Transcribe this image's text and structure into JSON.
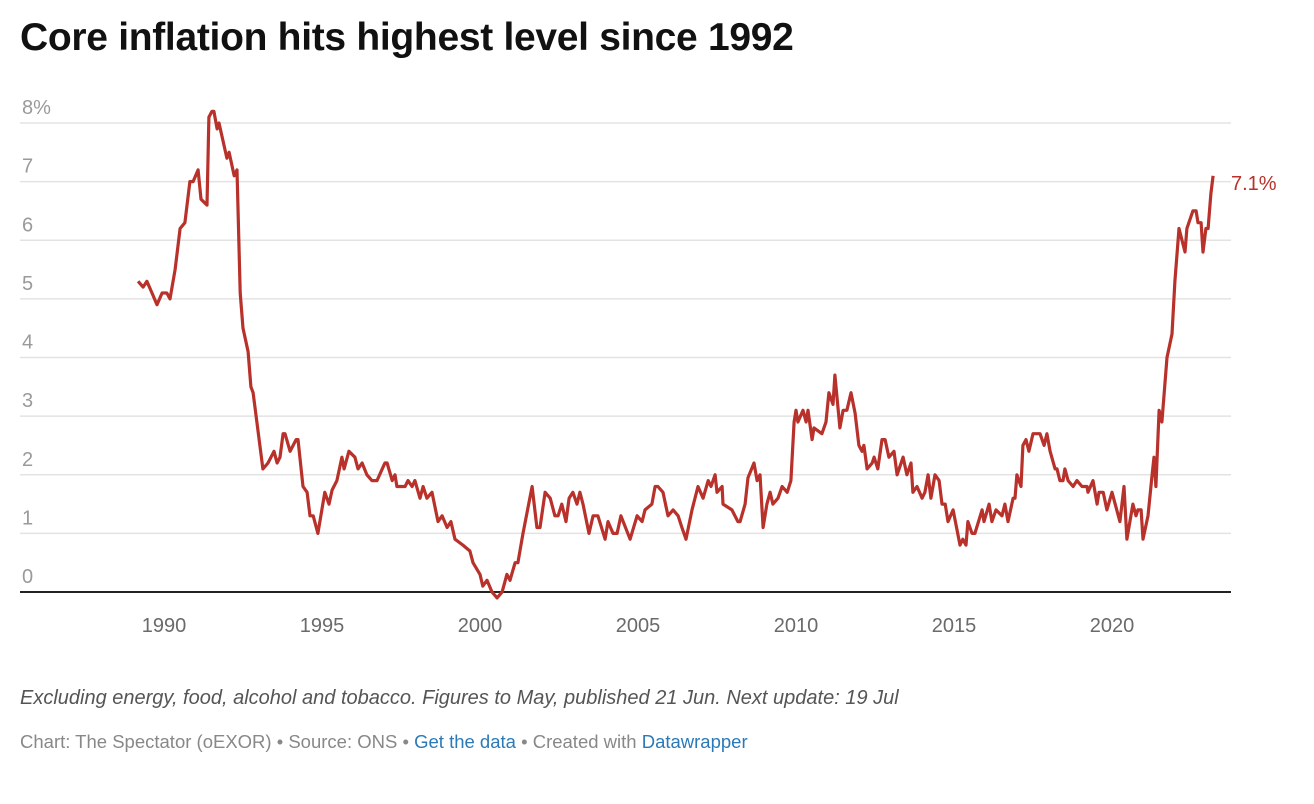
{
  "chart_data": {
    "type": "line",
    "title": "Core inflation hits highest level since 1992",
    "xlabel": "",
    "ylabel": "",
    "xlim": [
      1988.2,
      1990.0
    ],
    "ylim": [
      0,
      8
    ],
    "x_ticks": [
      "1990",
      "1995",
      "2000",
      "2005",
      "2010",
      "2015",
      "2020"
    ],
    "y_ticks": [
      "0",
      "1",
      "2",
      "3",
      "4",
      "5",
      "6",
      "7",
      "8%"
    ],
    "grid": true,
    "line_color": "#b8312b",
    "end_label": "7.1%",
    "points": [
      [
        1989.18,
        5.3
      ],
      [
        1989.34,
        5.2
      ],
      [
        1989.46,
        5.3
      ],
      [
        1989.62,
        5.1
      ],
      [
        1989.78,
        4.9
      ],
      [
        1989.94,
        5.1
      ],
      [
        1990.09,
        5.1
      ],
      [
        1990.19,
        5.0
      ],
      [
        1990.35,
        5.5
      ],
      [
        1990.51,
        6.2
      ],
      [
        1990.66,
        6.3
      ],
      [
        1990.82,
        7.0
      ],
      [
        1990.92,
        7.0
      ],
      [
        1991.08,
        7.2
      ],
      [
        1991.17,
        6.7
      ],
      [
        1991.36,
        6.6
      ],
      [
        1991.42,
        8.1
      ],
      [
        1991.52,
        8.2
      ],
      [
        1991.58,
        8.2
      ],
      [
        1991.68,
        7.9
      ],
      [
        1991.74,
        8.0
      ],
      [
        1991.99,
        7.4
      ],
      [
        1992.06,
        7.5
      ],
      [
        1992.22,
        7.1
      ],
      [
        1992.31,
        7.2
      ],
      [
        1992.41,
        5.1
      ],
      [
        1992.5,
        4.5
      ],
      [
        1992.66,
        4.1
      ],
      [
        1992.75,
        3.5
      ],
      [
        1992.82,
        3.4
      ],
      [
        1993.13,
        2.1
      ],
      [
        1993.29,
        2.2
      ],
      [
        1993.48,
        2.4
      ],
      [
        1993.58,
        2.2
      ],
      [
        1993.67,
        2.3
      ],
      [
        1993.77,
        2.7
      ],
      [
        1993.83,
        2.7
      ],
      [
        1993.99,
        2.4
      ],
      [
        1994.18,
        2.6
      ],
      [
        1994.24,
        2.6
      ],
      [
        1994.4,
        1.8
      ],
      [
        1994.53,
        1.7
      ],
      [
        1994.62,
        1.3
      ],
      [
        1994.72,
        1.3
      ],
      [
        1994.87,
        1.0
      ],
      [
        1995.09,
        1.7
      ],
      [
        1995.22,
        1.5
      ],
      [
        1995.32,
        1.74
      ],
      [
        1995.47,
        1.9
      ],
      [
        1995.63,
        2.3
      ],
      [
        1995.7,
        2.1
      ],
      [
        1995.85,
        2.4
      ],
      [
        1996.04,
        2.3
      ],
      [
        1996.14,
        2.1
      ],
      [
        1996.27,
        2.2
      ],
      [
        1996.42,
        2.0
      ],
      [
        1996.58,
        1.9
      ],
      [
        1996.74,
        1.9
      ],
      [
        1996.99,
        2.2
      ],
      [
        1997.06,
        2.2
      ],
      [
        1997.22,
        1.9
      ],
      [
        1997.31,
        2.0
      ],
      [
        1997.37,
        1.8
      ],
      [
        1997.63,
        1.8
      ],
      [
        1997.72,
        1.9
      ],
      [
        1997.85,
        1.8
      ],
      [
        1997.94,
        1.9
      ],
      [
        1998.1,
        1.6
      ],
      [
        1998.2,
        1.8
      ],
      [
        1998.32,
        1.6
      ],
      [
        1998.48,
        1.7
      ],
      [
        1998.67,
        1.2
      ],
      [
        1998.8,
        1.3
      ],
      [
        1998.96,
        1.1
      ],
      [
        1999.08,
        1.2
      ],
      [
        1999.21,
        0.9
      ],
      [
        1999.46,
        0.8
      ],
      [
        1999.68,
        0.7
      ],
      [
        1999.78,
        0.5
      ],
      [
        2000.0,
        0.3
      ],
      [
        2000.09,
        0.1
      ],
      [
        2000.22,
        0.2
      ],
      [
        2000.38,
        0.0
      ],
      [
        2000.54,
        -0.1
      ],
      [
        2000.7,
        0.0
      ],
      [
        2000.85,
        0.3
      ],
      [
        2000.95,
        0.2
      ],
      [
        2001.11,
        0.5
      ],
      [
        2001.2,
        0.5
      ],
      [
        2001.36,
        1.0
      ],
      [
        2001.65,
        1.8
      ],
      [
        2001.8,
        1.1
      ],
      [
        2001.9,
        1.1
      ],
      [
        2002.06,
        1.7
      ],
      [
        2002.22,
        1.6
      ],
      [
        2002.37,
        1.3
      ],
      [
        2002.47,
        1.3
      ],
      [
        2002.59,
        1.5
      ],
      [
        2002.72,
        1.2
      ],
      [
        2002.82,
        1.6
      ],
      [
        2002.94,
        1.7
      ],
      [
        2003.07,
        1.5
      ],
      [
        2003.16,
        1.7
      ],
      [
        2003.26,
        1.5
      ],
      [
        2003.45,
        1.0
      ],
      [
        2003.58,
        1.3
      ],
      [
        2003.73,
        1.3
      ],
      [
        2003.96,
        0.9
      ],
      [
        2004.05,
        1.2
      ],
      [
        2004.21,
        1.0
      ],
      [
        2004.34,
        1.0
      ],
      [
        2004.46,
        1.3
      ],
      [
        2004.75,
        0.9
      ],
      [
        2004.97,
        1.3
      ],
      [
        2005.13,
        1.2
      ],
      [
        2005.22,
        1.4
      ],
      [
        2005.44,
        1.5
      ],
      [
        2005.54,
        1.8
      ],
      [
        2005.63,
        1.8
      ],
      [
        2005.79,
        1.7
      ],
      [
        2005.95,
        1.3
      ],
      [
        2006.11,
        1.4
      ],
      [
        2006.27,
        1.3
      ],
      [
        2006.39,
        1.1
      ],
      [
        2006.52,
        0.9
      ],
      [
        2006.71,
        1.4
      ],
      [
        2006.9,
        1.8
      ],
      [
        2007.06,
        1.6
      ],
      [
        2007.22,
        1.9
      ],
      [
        2007.31,
        1.8
      ],
      [
        2007.44,
        2.0
      ],
      [
        2007.5,
        1.7
      ],
      [
        2007.66,
        1.8
      ],
      [
        2007.69,
        1.5
      ],
      [
        2007.97,
        1.4
      ],
      [
        2008.16,
        1.2
      ],
      [
        2008.23,
        1.2
      ],
      [
        2008.39,
        1.5
      ],
      [
        2008.48,
        1.95
      ],
      [
        2008.67,
        2.2
      ],
      [
        2008.77,
        1.9
      ],
      [
        2008.86,
        2.0
      ],
      [
        2008.96,
        1.1
      ],
      [
        2009.08,
        1.5
      ],
      [
        2009.18,
        1.7
      ],
      [
        2009.27,
        1.5
      ],
      [
        2009.43,
        1.6
      ],
      [
        2009.56,
        1.8
      ],
      [
        2009.72,
        1.7
      ],
      [
        2009.84,
        1.9
      ],
      [
        2009.94,
        2.9
      ],
      [
        2010.0,
        3.1
      ],
      [
        2010.06,
        2.9
      ],
      [
        2010.22,
        3.1
      ],
      [
        2010.32,
        2.9
      ],
      [
        2010.38,
        3.1
      ],
      [
        2010.51,
        2.6
      ],
      [
        2010.57,
        2.8
      ],
      [
        2010.82,
        2.7
      ],
      [
        2010.95,
        2.9
      ],
      [
        2011.04,
        3.4
      ],
      [
        2011.17,
        3.2
      ],
      [
        2011.23,
        3.7
      ],
      [
        2011.39,
        2.8
      ],
      [
        2011.49,
        3.1
      ],
      [
        2011.61,
        3.1
      ],
      [
        2011.74,
        3.4
      ],
      [
        2011.87,
        3.05
      ],
      [
        2011.99,
        2.5
      ],
      [
        2012.09,
        2.4
      ],
      [
        2012.15,
        2.5
      ],
      [
        2012.25,
        2.1
      ],
      [
        2012.41,
        2.2
      ],
      [
        2012.47,
        2.3
      ],
      [
        2012.59,
        2.1
      ],
      [
        2012.72,
        2.6
      ],
      [
        2012.82,
        2.6
      ],
      [
        2012.94,
        2.3
      ],
      [
        2013.1,
        2.4
      ],
      [
        2013.2,
        2.0
      ],
      [
        2013.39,
        2.3
      ],
      [
        2013.51,
        2.0
      ],
      [
        2013.64,
        2.2
      ],
      [
        2013.7,
        1.7
      ],
      [
        2013.83,
        1.8
      ],
      [
        2013.99,
        1.6
      ],
      [
        2014.08,
        1.7
      ],
      [
        2014.18,
        2.0
      ],
      [
        2014.27,
        1.6
      ],
      [
        2014.4,
        2.0
      ],
      [
        2014.53,
        1.9
      ],
      [
        2014.62,
        1.5
      ],
      [
        2014.72,
        1.5
      ],
      [
        2014.81,
        1.2
      ],
      [
        2014.97,
        1.4
      ],
      [
        2015.19,
        0.8
      ],
      [
        2015.28,
        0.9
      ],
      [
        2015.38,
        0.8
      ],
      [
        2015.44,
        1.2
      ],
      [
        2015.57,
        1.0
      ],
      [
        2015.66,
        1.0
      ],
      [
        2015.89,
        1.4
      ],
      [
        2015.95,
        1.2
      ],
      [
        2016.11,
        1.5
      ],
      [
        2016.2,
        1.2
      ],
      [
        2016.33,
        1.4
      ],
      [
        2016.52,
        1.3
      ],
      [
        2016.61,
        1.5
      ],
      [
        2016.71,
        1.2
      ],
      [
        2016.87,
        1.6
      ],
      [
        2016.93,
        1.6
      ],
      [
        2016.99,
        2.0
      ],
      [
        2017.12,
        1.8
      ],
      [
        2017.18,
        2.5
      ],
      [
        2017.28,
        2.6
      ],
      [
        2017.37,
        2.4
      ],
      [
        2017.5,
        2.7
      ],
      [
        2017.72,
        2.7
      ],
      [
        2017.85,
        2.5
      ],
      [
        2017.94,
        2.7
      ],
      [
        2018.04,
        2.4
      ],
      [
        2018.2,
        2.1
      ],
      [
        2018.26,
        2.1
      ],
      [
        2018.35,
        1.9
      ],
      [
        2018.45,
        1.9
      ],
      [
        2018.51,
        2.1
      ],
      [
        2018.61,
        1.9
      ],
      [
        2018.77,
        1.8
      ],
      [
        2018.89,
        1.9
      ],
      [
        2019.05,
        1.8
      ],
      [
        2019.21,
        1.8
      ],
      [
        2019.24,
        1.7
      ],
      [
        2019.4,
        1.9
      ],
      [
        2019.53,
        1.5
      ],
      [
        2019.59,
        1.7
      ],
      [
        2019.72,
        1.7
      ],
      [
        2019.84,
        1.4
      ],
      [
        2020.0,
        1.7
      ],
      [
        2020.25,
        1.2
      ],
      [
        2020.38,
        1.8
      ],
      [
        2020.47,
        0.9
      ],
      [
        2020.66,
        1.5
      ],
      [
        2020.76,
        1.3
      ],
      [
        2020.82,
        1.4
      ],
      [
        2020.92,
        1.4
      ],
      [
        2020.98,
        0.9
      ],
      [
        2021.14,
        1.3
      ],
      [
        2021.27,
        2.0
      ],
      [
        2021.33,
        2.3
      ],
      [
        2021.39,
        1.8
      ],
      [
        2021.49,
        3.1
      ],
      [
        2021.58,
        2.9
      ],
      [
        2021.74,
        4.0
      ],
      [
        2021.9,
        4.4
      ],
      [
        2021.99,
        5.3
      ],
      [
        2022.12,
        6.2
      ],
      [
        2022.31,
        5.8
      ],
      [
        2022.37,
        6.2
      ],
      [
        2022.56,
        6.5
      ],
      [
        2022.66,
        6.5
      ],
      [
        2022.72,
        6.3
      ],
      [
        2022.82,
        6.3
      ],
      [
        2022.88,
        5.8
      ],
      [
        2022.97,
        6.2
      ],
      [
        2023.04,
        6.2
      ],
      [
        2023.13,
        6.8
      ],
      [
        2023.2,
        7.1
      ]
    ]
  },
  "footer": {
    "notes": "Excluding energy, food, alcohol and tobacco. Figures to May, published 21 Jun. Next update: 19 Jul",
    "chart_credit": "Chart: The Spectator (oEXOR)",
    "separator": "•",
    "source": "Source: ONS",
    "get_data_link": "Get the data",
    "created_with": "Created with",
    "datawrapper_link": "Datawrapper"
  }
}
